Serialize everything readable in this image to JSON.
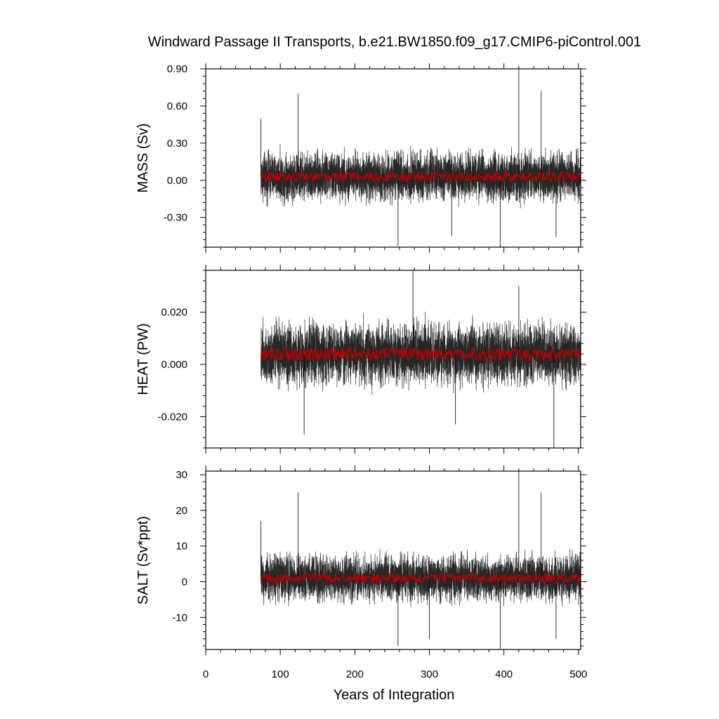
{
  "title": "Windward Passage II Transports, b.e21.BW1850.f09_g17.CMIP6-piControl.001",
  "chart_data": [
    {
      "type": "line",
      "ylabel": "MASS (Sv)",
      "xlim": [
        0,
        503
      ],
      "ylim": [
        -0.54,
        0.9
      ],
      "yticks": [
        -0.3,
        0.0,
        0.3,
        0.6,
        0.9
      ],
      "ytick_labels": [
        "-0.30",
        "0.00",
        "0.30",
        "0.60",
        "0.90"
      ],
      "series": [
        {
          "role": "monthly",
          "color": "#000000",
          "x_start": 74,
          "x_end": 503,
          "mean": 0.03,
          "spread": 0.09,
          "spikes": [
            [
              74,
              0.5
            ],
            [
              124,
              0.7
            ],
            [
              420,
              0.9
            ],
            [
              450,
              0.72
            ],
            [
              258,
              -0.53
            ],
            [
              395,
              -0.54
            ],
            [
              470,
              -0.46
            ],
            [
              330,
              -0.45
            ]
          ]
        },
        {
          "role": "annual mean",
          "color": "#c00000",
          "x_start": 74,
          "x_end": 503,
          "mean": 0.03
        }
      ]
    },
    {
      "type": "line",
      "ylabel": "HEAT (PW)",
      "xlim": [
        0,
        503
      ],
      "ylim": [
        -0.032,
        0.036
      ],
      "yticks": [
        -0.02,
        0.0,
        0.02
      ],
      "ytick_labels": [
        "-0.020",
        "0.000",
        "0.020"
      ],
      "series": [
        {
          "role": "monthly",
          "color": "#000000",
          "x_start": 74,
          "x_end": 503,
          "mean": 0.004,
          "spread": 0.0055,
          "spikes": [
            [
              278,
              0.036
            ],
            [
              420,
              0.03
            ],
            [
              132,
              -0.027
            ],
            [
              467,
              -0.032
            ],
            [
              335,
              -0.023
            ]
          ]
        },
        {
          "role": "annual mean",
          "color": "#c00000",
          "x_start": 74,
          "x_end": 503,
          "mean": 0.004
        }
      ]
    },
    {
      "type": "line",
      "ylabel": "SALT (Sv*ppt)",
      "xlim": [
        0,
        503
      ],
      "xlabel": "Years of Integration",
      "xticks": [
        0,
        100,
        200,
        300,
        400,
        500
      ],
      "xtick_labels": [
        "0",
        "100",
        "200",
        "300",
        "400",
        "500"
      ],
      "ylim": [
        -19,
        31
      ],
      "yticks": [
        -10,
        0,
        10,
        20,
        30
      ],
      "ytick_labels": [
        "-10",
        "0",
        "10",
        "20",
        "30"
      ],
      "series": [
        {
          "role": "monthly",
          "color": "#000000",
          "x_start": 74,
          "x_end": 503,
          "mean": 1,
          "spread": 3,
          "spikes": [
            [
              74,
              17
            ],
            [
              124,
              25
            ],
            [
              420,
              31
            ],
            [
              450,
              25
            ],
            [
              258,
              -18
            ],
            [
              395,
              -19
            ],
            [
              470,
              -16
            ],
            [
              300,
              -16
            ]
          ]
        },
        {
          "role": "annual mean",
          "color": "#c00000",
          "x_start": 74,
          "x_end": 503,
          "mean": 1
        }
      ]
    }
  ]
}
